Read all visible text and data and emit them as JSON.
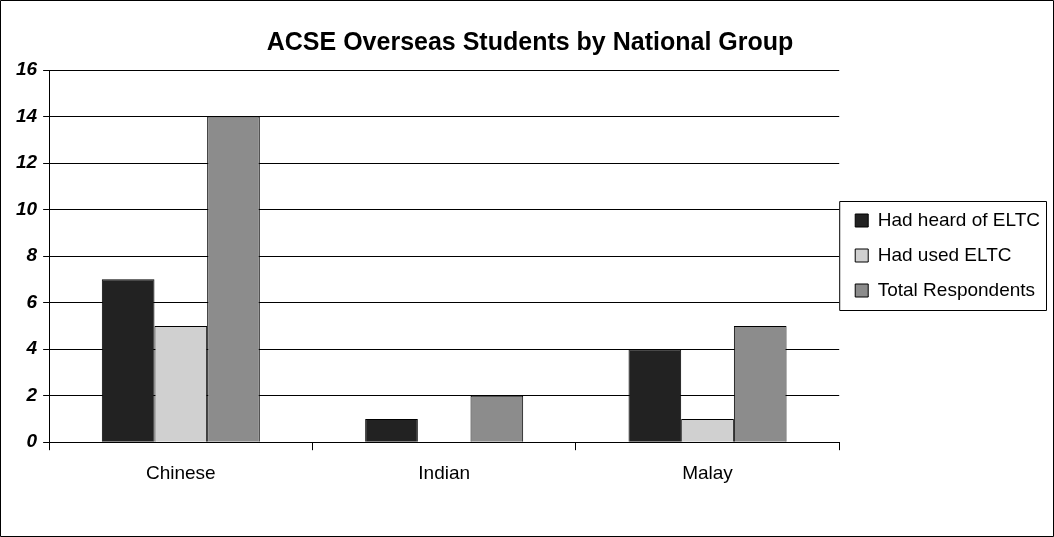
{
  "chart_data": {
    "type": "bar",
    "title": "ACSE Overseas Students by National Group",
    "categories": [
      "Chinese",
      "Indian",
      "Malay"
    ],
    "series": [
      {
        "name": "Had heard of ELTC",
        "color": "#222222",
        "values": [
          7,
          1,
          4
        ]
      },
      {
        "name": "Had used ELTC",
        "color": "#d0d0d0",
        "values": [
          5,
          0,
          1
        ]
      },
      {
        "name": "Total Respondents",
        "color": "#8c8c8c",
        "values": [
          14,
          2,
          5
        ]
      }
    ],
    "ylim": [
      0,
      16
    ],
    "yticks": [
      0,
      2,
      4,
      6,
      8,
      10,
      12,
      14,
      16
    ],
    "grid": "y",
    "legend": "right"
  }
}
